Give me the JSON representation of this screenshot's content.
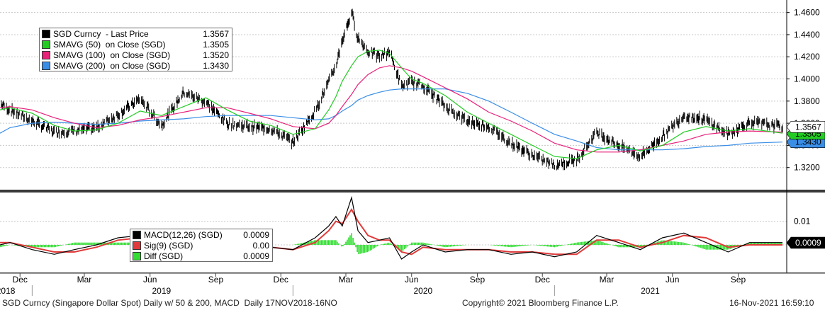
{
  "colors": {
    "price": "#000000",
    "sma50": "#22cc22",
    "sma100": "#e8207a",
    "sma200": "#3a8ee6",
    "macd": "#000000",
    "signal": "#e03a3a",
    "diff": "#33dd33"
  },
  "legend_top": [
    {
      "name": "SGD Curncy  - Last Price",
      "value": "1.3567",
      "color": "#000000"
    },
    {
      "name": "SMAVG (50)  on Close (SGD)",
      "value": "1.3505",
      "color": "#22cc22"
    },
    {
      "name": "SMAVG (100)  on Close (SGD)",
      "value": "1.3520",
      "color": "#e8207a"
    },
    {
      "name": "SMAVG (200)  on Close (SGD)",
      "value": "1.3430",
      "color": "#3a8ee6"
    }
  ],
  "legend_bottom": [
    {
      "name": "MACD(12,26) (SGD)",
      "value": "0.0009",
      "color": "#000000"
    },
    {
      "name": "Sig(9) (SGD)",
      "value": "0.00",
      "color": "#e03a3a"
    },
    {
      "name": "Diff (SGD)",
      "value": "0.0009",
      "color": "#33dd33"
    }
  ],
  "footer": {
    "left": "SGD Curncy (Singapore Dollar Spot) Daily w/ 50 & 200, MACD  Daily 17NOV2018-16NO",
    "center": "Copyright© 2021 Bloomberg Finance L.P.",
    "right": "16-Nov-2021 16:59:10"
  },
  "chart_data": [
    {
      "type": "line",
      "panel": "price",
      "ylim": [
        1.3,
        1.47
      ],
      "yticks": [
        "1.3200",
        "1.3400",
        "1.3600",
        "1.3800",
        "1.4000",
        "1.4200",
        "1.4400",
        "1.4600"
      ],
      "last_labels": {
        "price": "1.3567",
        "sma50": "1.3505",
        "sma200": "1.3430"
      },
      "x_month_labels": [
        "Dec",
        "Mar",
        "Jun",
        "Sep",
        "Dec",
        "Mar",
        "Jun",
        "Sep",
        "Dec",
        "Mar",
        "Jun",
        "Sep"
      ],
      "x_year_labels": [
        "2018",
        "2019",
        "2020",
        "2021"
      ],
      "x": [
        "2018-11-17",
        "2018-12-01",
        "2019-01-01",
        "2019-02-01",
        "2019-03-01",
        "2019-04-01",
        "2019-05-01",
        "2019-06-01",
        "2019-07-01",
        "2019-08-01",
        "2019-09-01",
        "2019-10-01",
        "2019-11-01",
        "2019-12-01",
        "2020-01-01",
        "2020-02-01",
        "2020-02-20",
        "2020-03-01",
        "2020-03-10",
        "2020-03-23",
        "2020-04-01",
        "2020-04-15",
        "2020-05-01",
        "2020-05-15",
        "2020-06-01",
        "2020-06-15",
        "2020-07-01",
        "2020-08-01",
        "2020-09-01",
        "2020-10-01",
        "2020-11-01",
        "2020-12-01",
        "2021-01-01",
        "2021-02-01",
        "2021-03-01",
        "2021-04-01",
        "2021-05-01",
        "2021-06-01",
        "2021-07-01",
        "2021-08-01",
        "2021-09-01",
        "2021-10-01",
        "2021-11-16"
      ],
      "series": [
        {
          "key": "price",
          "values": [
            1.378,
            1.372,
            1.362,
            1.352,
            1.353,
            1.356,
            1.368,
            1.382,
            1.358,
            1.388,
            1.379,
            1.36,
            1.357,
            1.355,
            1.343,
            1.371,
            1.397,
            1.412,
            1.435,
            1.46,
            1.437,
            1.425,
            1.42,
            1.425,
            1.393,
            1.397,
            1.394,
            1.375,
            1.362,
            1.357,
            1.342,
            1.331,
            1.322,
            1.327,
            1.352,
            1.34,
            1.33,
            1.348,
            1.367,
            1.363,
            1.35,
            1.361,
            1.357
          ]
        },
        {
          "key": "sma50",
          "values": [
            1.372,
            1.374,
            1.369,
            1.358,
            1.353,
            1.354,
            1.36,
            1.371,
            1.367,
            1.375,
            1.383,
            1.372,
            1.362,
            1.358,
            1.35,
            1.355,
            1.372,
            1.384,
            1.398,
            1.412,
            1.42,
            1.425,
            1.426,
            1.423,
            1.41,
            1.4,
            1.396,
            1.385,
            1.37,
            1.36,
            1.35,
            1.34,
            1.33,
            1.328,
            1.336,
            1.34,
            1.335,
            1.34,
            1.352,
            1.357,
            1.353,
            1.355,
            1.351
          ]
        },
        {
          "key": "sma100",
          "values": [
            1.374,
            1.375,
            1.372,
            1.365,
            1.36,
            1.356,
            1.358,
            1.363,
            1.366,
            1.37,
            1.374,
            1.374,
            1.369,
            1.364,
            1.357,
            1.355,
            1.36,
            1.367,
            1.375,
            1.386,
            1.395,
            1.404,
            1.41,
            1.412,
            1.41,
            1.407,
            1.402,
            1.392,
            1.382,
            1.37,
            1.362,
            1.353,
            1.342,
            1.336,
            1.334,
            1.334,
            1.336,
            1.34,
            1.344,
            1.35,
            1.352,
            1.353,
            1.352
          ]
        },
        {
          "key": "sma200",
          "values": [
            1.351,
            1.356,
            1.36,
            1.361,
            1.36,
            1.359,
            1.36,
            1.362,
            1.363,
            1.364,
            1.366,
            1.367,
            1.367,
            1.367,
            1.365,
            1.363,
            1.364,
            1.367,
            1.371,
            1.376,
            1.381,
            1.385,
            1.388,
            1.39,
            1.391,
            1.391,
            1.391,
            1.391,
            1.387,
            1.38,
            1.37,
            1.36,
            1.35,
            1.344,
            1.338,
            1.336,
            1.336,
            1.336,
            1.337,
            1.339,
            1.34,
            1.342,
            1.343
          ]
        }
      ]
    },
    {
      "type": "line",
      "panel": "macd",
      "ylim": [
        -0.012,
        0.021
      ],
      "yticks": [
        "0.01"
      ],
      "last_labels": {
        "macd": "0.0009"
      },
      "x": [
        "2018-11-17",
        "2018-12-01",
        "2019-01-01",
        "2019-02-01",
        "2019-03-01",
        "2019-04-01",
        "2019-05-01",
        "2019-06-01",
        "2019-07-01",
        "2019-08-01",
        "2019-09-01",
        "2019-10-01",
        "2019-11-01",
        "2019-12-01",
        "2020-01-01",
        "2020-02-01",
        "2020-02-20",
        "2020-03-01",
        "2020-03-10",
        "2020-03-23",
        "2020-04-01",
        "2020-04-15",
        "2020-05-01",
        "2020-05-15",
        "2020-06-01",
        "2020-06-15",
        "2020-07-01",
        "2020-08-01",
        "2020-09-01",
        "2020-10-01",
        "2020-11-01",
        "2020-12-01",
        "2021-01-01",
        "2021-02-01",
        "2021-03-01",
        "2021-04-01",
        "2021-05-01",
        "2021-06-01",
        "2021-07-01",
        "2021-08-01",
        "2021-09-01",
        "2021-10-01",
        "2021-11-16"
      ],
      "series": [
        {
          "key": "macd",
          "values": [
            0.0,
            0.001,
            -0.002,
            -0.004,
            -0.002,
            0.0,
            0.003,
            0.004,
            -0.002,
            0.004,
            0.0,
            -0.003,
            -0.002,
            -0.001,
            -0.002,
            0.003,
            0.008,
            0.012,
            0.008,
            0.02,
            0.006,
            0.001,
            0.002,
            0.003,
            -0.006,
            -0.003,
            0.0,
            -0.003,
            -0.002,
            -0.002,
            -0.004,
            -0.003,
            -0.005,
            -0.003,
            0.004,
            0.001,
            -0.002,
            0.003,
            0.005,
            0.001,
            -0.003,
            0.001,
            0.001
          ]
        },
        {
          "key": "signal",
          "values": [
            0.001,
            0.001,
            -0.001,
            -0.003,
            -0.003,
            -0.001,
            0.002,
            0.003,
            0.0,
            0.002,
            0.002,
            -0.001,
            -0.002,
            -0.001,
            -0.002,
            0.001,
            0.006,
            0.01,
            0.009,
            0.015,
            0.01,
            0.004,
            0.002,
            0.002,
            -0.003,
            -0.004,
            -0.001,
            -0.002,
            -0.002,
            -0.002,
            -0.003,
            -0.003,
            -0.004,
            -0.004,
            0.002,
            0.002,
            -0.001,
            0.001,
            0.004,
            0.003,
            -0.001,
            0.0,
            0.0
          ]
        }
      ]
    }
  ]
}
